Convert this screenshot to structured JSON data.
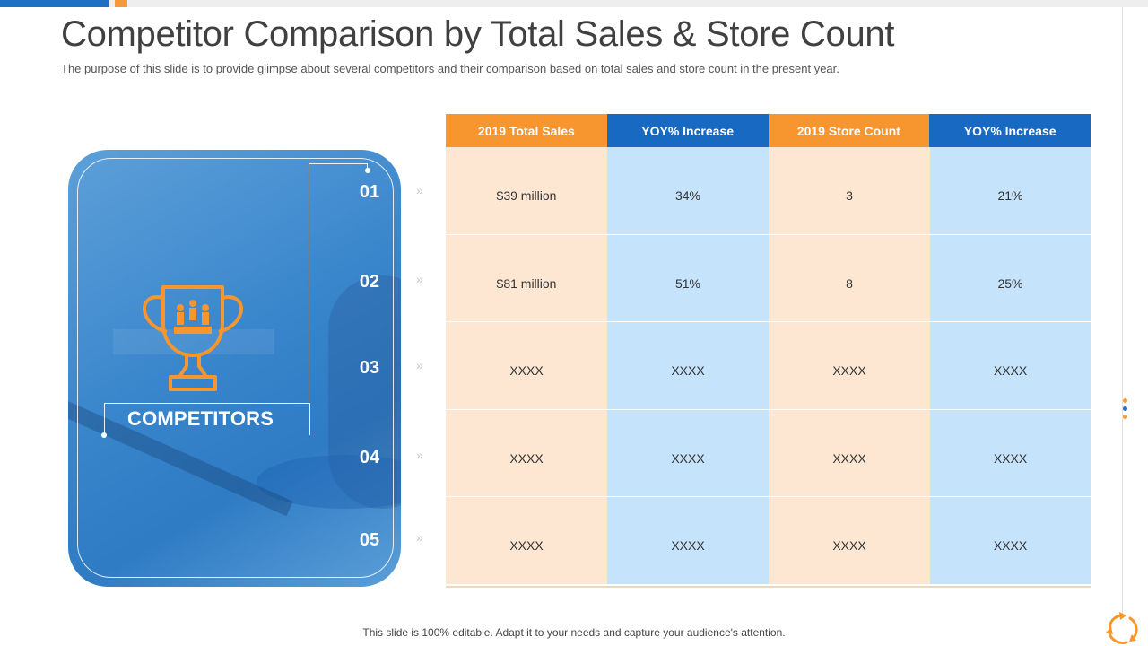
{
  "slide": {
    "title": "Competitor Comparison by Total Sales & Store Count",
    "subtitle": "The purpose of this slide is to provide glimpse about several competitors and their comparison based on total sales and store count in the present year.",
    "footer": "This slide is 100% editable. Adapt it to your needs and capture your audience's attention."
  },
  "card": {
    "label": "COMPETITORS",
    "numbers": [
      "01",
      "02",
      "03",
      "04",
      "05"
    ],
    "chevron": "»"
  },
  "table": {
    "headers": [
      "2019 Total Sales",
      "YOY% Increase",
      "2019 Store Count",
      "YOY% Increase"
    ],
    "rows": [
      [
        "$39 million",
        "34%",
        "3",
        "21%"
      ],
      [
        "$81 million",
        "51%",
        "8",
        "25%"
      ],
      [
        "XXXX",
        "XXXX",
        "XXXX",
        "XXXX"
      ],
      [
        "XXXX",
        "XXXX",
        "XXXX",
        "XXXX"
      ],
      [
        "XXXX",
        "XXXX",
        "XXXX",
        "XXXX"
      ]
    ]
  },
  "colors": {
    "orange": "#f7952f",
    "blue": "#1769c2",
    "orange_light": "#fde7d3",
    "blue_light": "#c5e3fb",
    "card_blue": "#3a86cc"
  },
  "icons": {
    "card_icon": "trophy-icon",
    "brand_logo": "recycle-leaf-logo-icon"
  }
}
